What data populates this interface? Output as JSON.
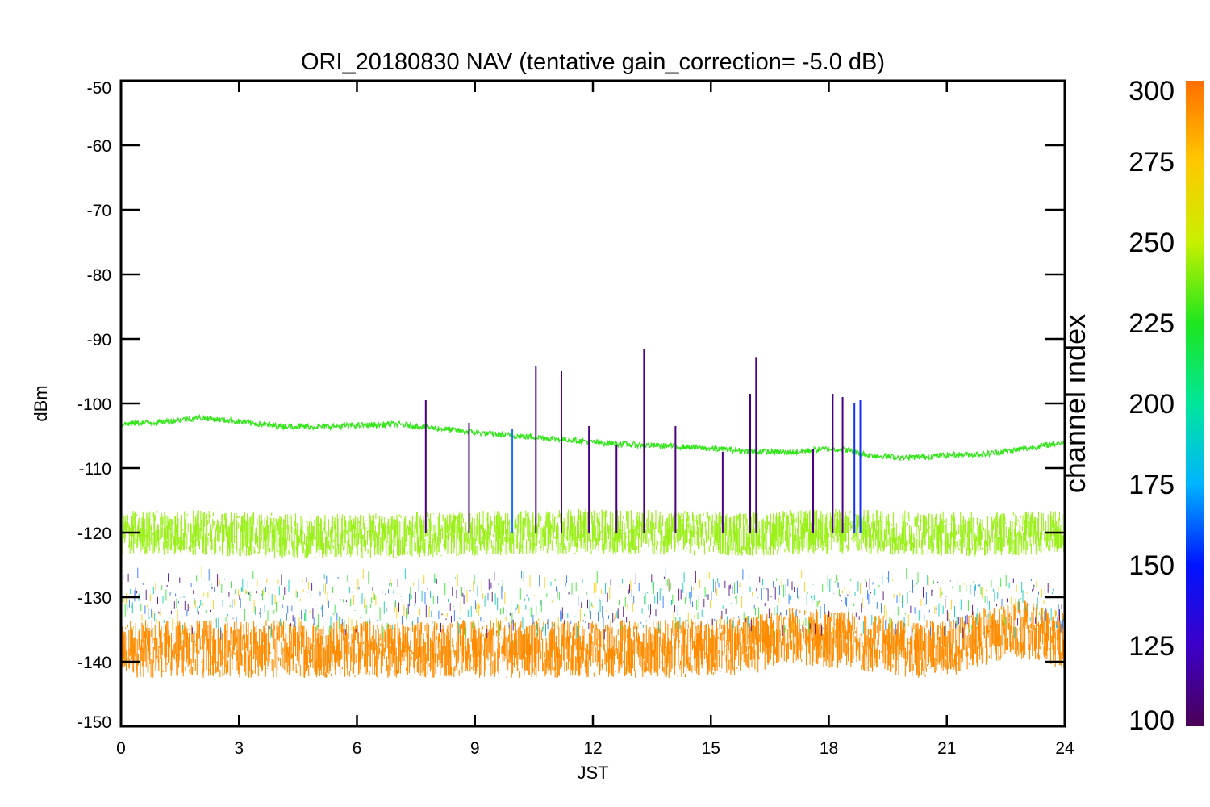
{
  "chart_data": {
    "type": "line",
    "title": "ORI_20180830 NAV (tentative gain_correction= -5.0 dB)",
    "xlabel": "JST",
    "ylabel": "dBm",
    "xlim": [
      0,
      24
    ],
    "ylim": [
      -150,
      -50
    ],
    "xticks": [
      0,
      3,
      6,
      9,
      12,
      15,
      18,
      21,
      24
    ],
    "yticks": [
      -50,
      -60,
      -70,
      -80,
      -90,
      -100,
      -110,
      -120,
      -130,
      -140,
      -150
    ],
    "colorbar": {
      "title": "channel index",
      "range": [
        100,
        300
      ],
      "ticks": [
        300,
        275,
        250,
        225,
        200,
        175,
        150,
        125,
        100
      ],
      "colormap": "rainbow (purple-blue-cyan-green-yellow-orange)"
    },
    "series": [
      {
        "color": "#33e61a",
        "x": [
          0,
          0.5,
          1,
          1.5,
          2,
          3,
          4,
          5,
          6,
          7,
          8,
          9,
          10,
          11,
          12,
          13,
          14,
          15,
          16,
          17,
          18,
          18.5,
          19,
          20,
          21,
          22,
          23,
          24
        ],
        "values": [
          -103.2,
          -103.0,
          -102.9,
          -102.5,
          -102.2,
          -102.8,
          -103.5,
          -103.6,
          -103.4,
          -103.2,
          -103.8,
          -104.5,
          -105.0,
          -105.4,
          -106.0,
          -106.4,
          -106.6,
          -107.0,
          -107.4,
          -107.6,
          -107.0,
          -107.2,
          -108.0,
          -108.4,
          -108.0,
          -107.8,
          -107.0,
          -106.0
        ]
      },
      {
        "color": "#9bf01a",
        "x": [
          0,
          2,
          4,
          6,
          8,
          10,
          12,
          14,
          16,
          18,
          20,
          22,
          24
        ],
        "values": [
          -120,
          -120,
          -120.5,
          -120.5,
          -120.3,
          -120,
          -119.8,
          -120,
          -120.2,
          -119.8,
          -120,
          -120.3,
          -120
        ],
        "spread": 3.5
      },
      {
        "color": "#ff8c00",
        "x": [
          0,
          2,
          4,
          6,
          8,
          10,
          12,
          14,
          16,
          17,
          18,
          19,
          20,
          21,
          22,
          23,
          24
        ],
        "values": [
          -138,
          -138,
          -138,
          -138,
          -138,
          -138,
          -138,
          -138,
          -137.5,
          -136,
          -136.5,
          -137,
          -138,
          -138,
          -136,
          -135,
          -137
        ],
        "spread": 4.5
      }
    ],
    "spikes": [
      {
        "x": 7.75,
        "y": -99.5,
        "color": "#4b0082"
      },
      {
        "x": 8.85,
        "y": -103,
        "color": "#4b0082"
      },
      {
        "x": 9.95,
        "y": -104,
        "color": "#1e6eff"
      },
      {
        "x": 10.55,
        "y": -94.2,
        "color": "#4b0082"
      },
      {
        "x": 11.2,
        "y": -95,
        "color": "#4b0082"
      },
      {
        "x": 11.9,
        "y": -103.5,
        "color": "#4b0082"
      },
      {
        "x": 12.6,
        "y": -106.5,
        "color": "#4b0082"
      },
      {
        "x": 13.3,
        "y": -91.5,
        "color": "#4b0082"
      },
      {
        "x": 14.1,
        "y": -103.5,
        "color": "#4b0082"
      },
      {
        "x": 15.3,
        "y": -107.5,
        "color": "#4b0082"
      },
      {
        "x": 16.0,
        "y": -98.5,
        "color": "#4b0082"
      },
      {
        "x": 16.15,
        "y": -92.8,
        "color": "#4b0082"
      },
      {
        "x": 17.6,
        "y": -107.0,
        "color": "#4b0082"
      },
      {
        "x": 18.1,
        "y": -98.5,
        "color": "#4b0082"
      },
      {
        "x": 18.35,
        "y": -99.0,
        "color": "#4b0082"
      },
      {
        "x": 18.65,
        "y": -100.0,
        "color": "#1430ff"
      },
      {
        "x": 18.8,
        "y": -99.5,
        "color": "#1430ff"
      }
    ]
  }
}
